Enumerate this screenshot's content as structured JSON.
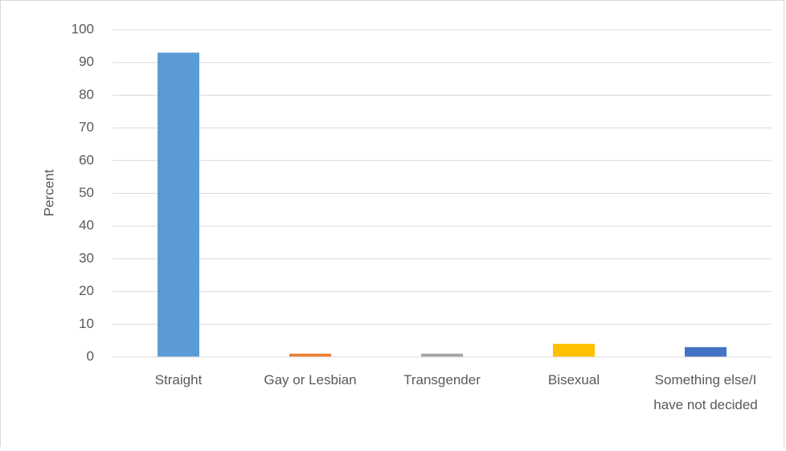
{
  "chart_data": {
    "type": "bar",
    "y_label": "Percent",
    "categories": [
      "Straight",
      "Gay or Lesbian",
      "Transgender",
      "Bisexual",
      "Something else/I have not decided"
    ],
    "values": [
      93,
      1,
      1,
      4,
      3
    ],
    "colors": [
      "#5b9bd5",
      "#ed7d31",
      "#a5a5a5",
      "#ffc000",
      "#4472c4"
    ],
    "ylim": [
      0,
      100
    ],
    "yticks": [
      0,
      10,
      20,
      30,
      40,
      50,
      60,
      70,
      80,
      90,
      100
    ],
    "grid": true
  }
}
